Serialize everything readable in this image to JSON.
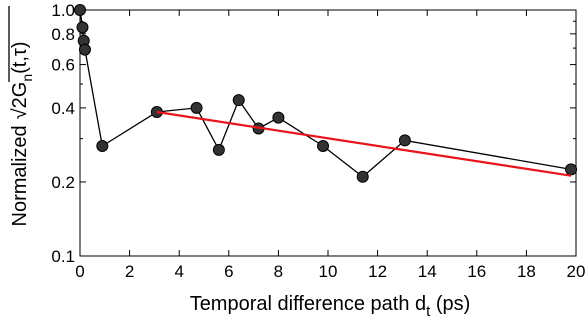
{
  "chart_data": {
    "type": "scatter",
    "title": "",
    "xlabel": "Temporal difference path d",
    "xlabel_sub": "t",
    "xlabel_unit": " (ps)",
    "ylabel": "Normalized",
    "ylabel_sqrt_body": "2G",
    "ylabel_sub": "n",
    "ylabel_args": "(t,τ)",
    "x_scale": "linear",
    "y_scale": "log",
    "xlim": [
      0,
      20
    ],
    "ylim": [
      0.1,
      1.0
    ],
    "x_ticks": [
      0,
      2,
      4,
      6,
      8,
      10,
      12,
      14,
      16,
      18,
      20
    ],
    "x_tick_labels": [
      "0",
      "2",
      "4",
      "6",
      "8",
      "10",
      "12",
      "14",
      "16",
      "18",
      "20"
    ],
    "y_ticks": [
      0.1,
      0.2,
      0.4,
      0.6,
      0.8,
      1.0
    ],
    "y_tick_labels": [
      "0.1",
      "0.2",
      "0.4",
      "0.6",
      "0.8",
      "1.0"
    ],
    "grid": false,
    "series": [
      {
        "style": "line-markers",
        "color": "#000000",
        "marker_color": "#333333",
        "x": [
          0.0,
          0.1,
          0.15,
          0.2,
          0.9,
          3.1,
          4.7,
          5.6,
          6.4,
          7.2,
          8.0,
          9.8,
          11.4,
          13.1,
          19.8
        ],
        "y": [
          1.0,
          0.85,
          0.75,
          0.69,
          0.28,
          0.385,
          0.4,
          0.27,
          0.43,
          0.33,
          0.365,
          0.28,
          0.21,
          0.295,
          0.225
        ]
      },
      {
        "style": "fit-line",
        "color": "#e8141b",
        "x": [
          3.1,
          19.8
        ],
        "y": [
          0.385,
          0.212
        ]
      }
    ]
  }
}
